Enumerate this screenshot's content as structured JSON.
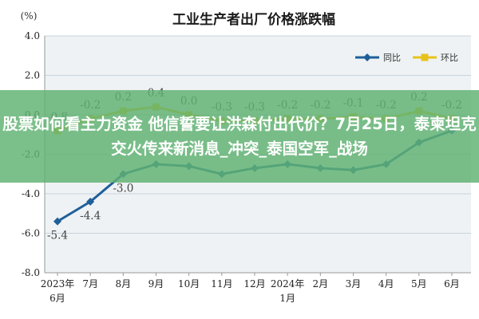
{
  "overlay": {
    "text": "股票如何看主力资金 他信誓要让洪森付出代价？7月25日，泰柬坦克交火传来新消息_冲突_泰国空军_战场"
  },
  "colors": {
    "yoy": "#1f5f99",
    "mom": "#e8c21c",
    "grid": "#c8d4dc",
    "plot_bg": "#eef2f4",
    "overlay": "#60b272"
  },
  "chart_data": {
    "type": "line",
    "title": "工业生产者出厂价格涨跌幅",
    "ylabel": "(%)",
    "ylim": [
      -8.0,
      4.0
    ],
    "yticks": [
      {
        "value": 4.0,
        "label": "4.0"
      },
      {
        "value": 2.0,
        "label": "2.0"
      },
      {
        "value": 0.0,
        "label": "0.0"
      },
      {
        "value": -2.0,
        "label": "-2.0"
      },
      {
        "value": -4.0,
        "label": "-4.0"
      },
      {
        "value": -6.0,
        "label": "-6.0"
      },
      {
        "value": -8.0,
        "label": "-8.0"
      }
    ],
    "categories": [
      {
        "label": "2023年",
        "sub": "6月"
      },
      {
        "label": "7月",
        "sub": ""
      },
      {
        "label": "8月",
        "sub": ""
      },
      {
        "label": "9月",
        "sub": ""
      },
      {
        "label": "10月",
        "sub": ""
      },
      {
        "label": "11月",
        "sub": ""
      },
      {
        "label": "12月",
        "sub": ""
      },
      {
        "label": "2024年",
        "sub": "1月"
      },
      {
        "label": "2月",
        "sub": ""
      },
      {
        "label": "3月",
        "sub": ""
      },
      {
        "label": "4月",
        "sub": ""
      },
      {
        "label": "5月",
        "sub": ""
      },
      {
        "label": "6月",
        "sub": ""
      }
    ],
    "series": [
      {
        "name": "同比",
        "color": "#1f5f99",
        "values": [
          -5.4,
          -4.4,
          -3.0,
          -2.5,
          -2.6,
          -3.0,
          -2.7,
          -2.5,
          -2.7,
          -2.8,
          -2.5,
          -1.4,
          -0.8
        ],
        "labels": [
          "-5.4",
          "-4.4",
          "-3.0",
          "",
          "",
          "",
          "",
          "",
          "",
          "",
          "",
          "",
          ""
        ]
      },
      {
        "name": "环比",
        "color": "#e8c21c",
        "values": [
          -0.8,
          -0.2,
          0.2,
          0.4,
          0.0,
          -0.3,
          -0.3,
          -0.2,
          -0.2,
          -0.1,
          -0.2,
          0.2,
          -0.2
        ],
        "labels": [
          "-0.8",
          "-0.2",
          "0.2",
          "0.4",
          "0.0",
          "-0.3",
          "-0.3",
          "-0.2",
          "-0.2",
          "-0.1",
          "-0.2",
          "0.2",
          "-0.2"
        ]
      }
    ],
    "legend": "top-right",
    "grid": true
  }
}
